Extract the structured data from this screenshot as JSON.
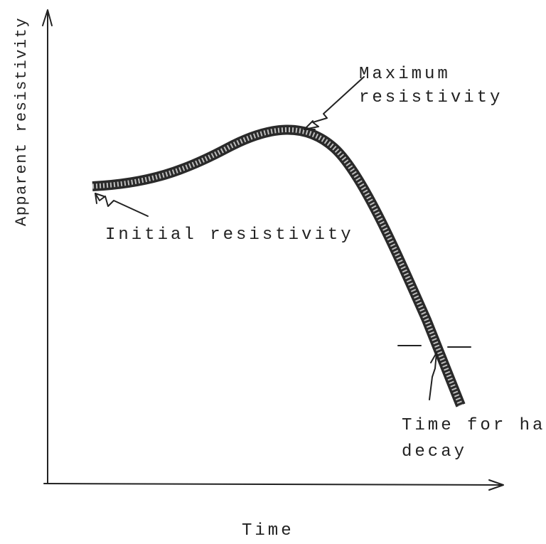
{
  "diagram": {
    "y_axis_label": "Apparent resistivity",
    "x_axis_label": "Time",
    "annotations": {
      "maximum": [
        "Maximum",
        "resistivity"
      ],
      "initial": [
        "Initial resistivity"
      ],
      "half_decay": [
        "Time for half",
        "decay"
      ]
    }
  }
}
